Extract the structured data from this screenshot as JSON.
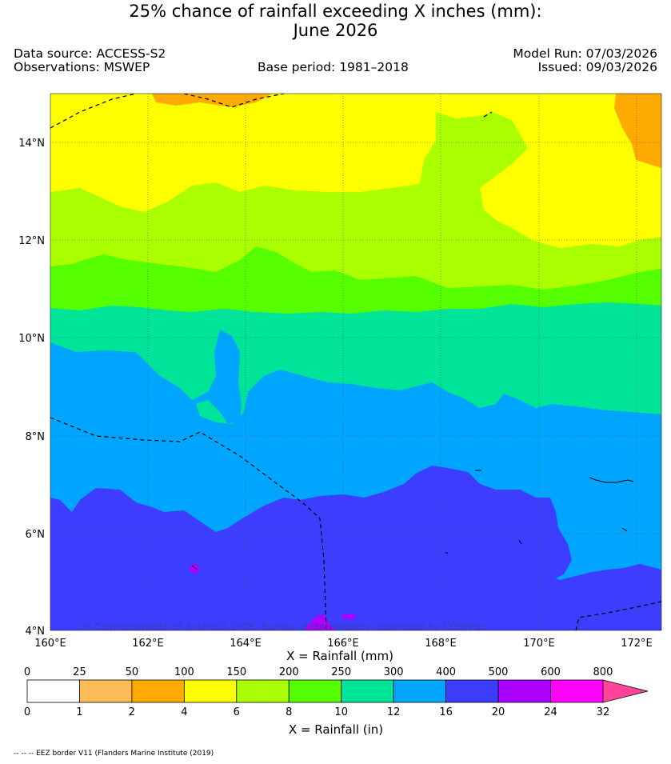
{
  "title": {
    "line1": "25% chance of rainfall exceeding X inches (mm):",
    "line2": "June 2026"
  },
  "header": {
    "data_source": "Data source: ACCESS-S2",
    "observations": "Observations: MSWEP",
    "base_period": "Base period: 1981–2018",
    "model_run": "Model Run: 07/03/2026",
    "issued": "Issued: 09/03/2026"
  },
  "map": {
    "lat_ticks": [
      "14°N",
      "12°N",
      "10°N",
      "8°N",
      "6°N",
      "4°N"
    ],
    "lon_ticks": [
      "160°E",
      "162°E",
      "164°E",
      "166°E",
      "168°E",
      "170°E",
      "172°E"
    ],
    "xlabel": "X = Rainfall (mm)",
    "copyright": "© Commonwealth of Australia 2026, Bureau of Meteorology, supported by COSPPac"
  },
  "colorbar": {
    "mm_labels": [
      "0",
      "25",
      "50",
      "100",
      "150",
      "200",
      "250",
      "300",
      "400",
      "500",
      "600",
      "800"
    ],
    "in_labels": [
      "0",
      "1",
      "2",
      "4",
      "6",
      "8",
      "10",
      "12",
      "16",
      "20",
      "24",
      "32"
    ],
    "colors": [
      "#ffffff",
      "#ffbb55",
      "#ffaa00",
      "#ffff00",
      "#aaff00",
      "#55ff00",
      "#00e499",
      "#00a5ff",
      "#3d3dff",
      "#aa00ff",
      "#ff00ff",
      "#ff4499"
    ],
    "xlabel": "X = Rainfall (in)"
  },
  "footer": {
    "note": "-- -- -- EEZ border V11 (Flanders Marine Institute (2019)"
  }
}
